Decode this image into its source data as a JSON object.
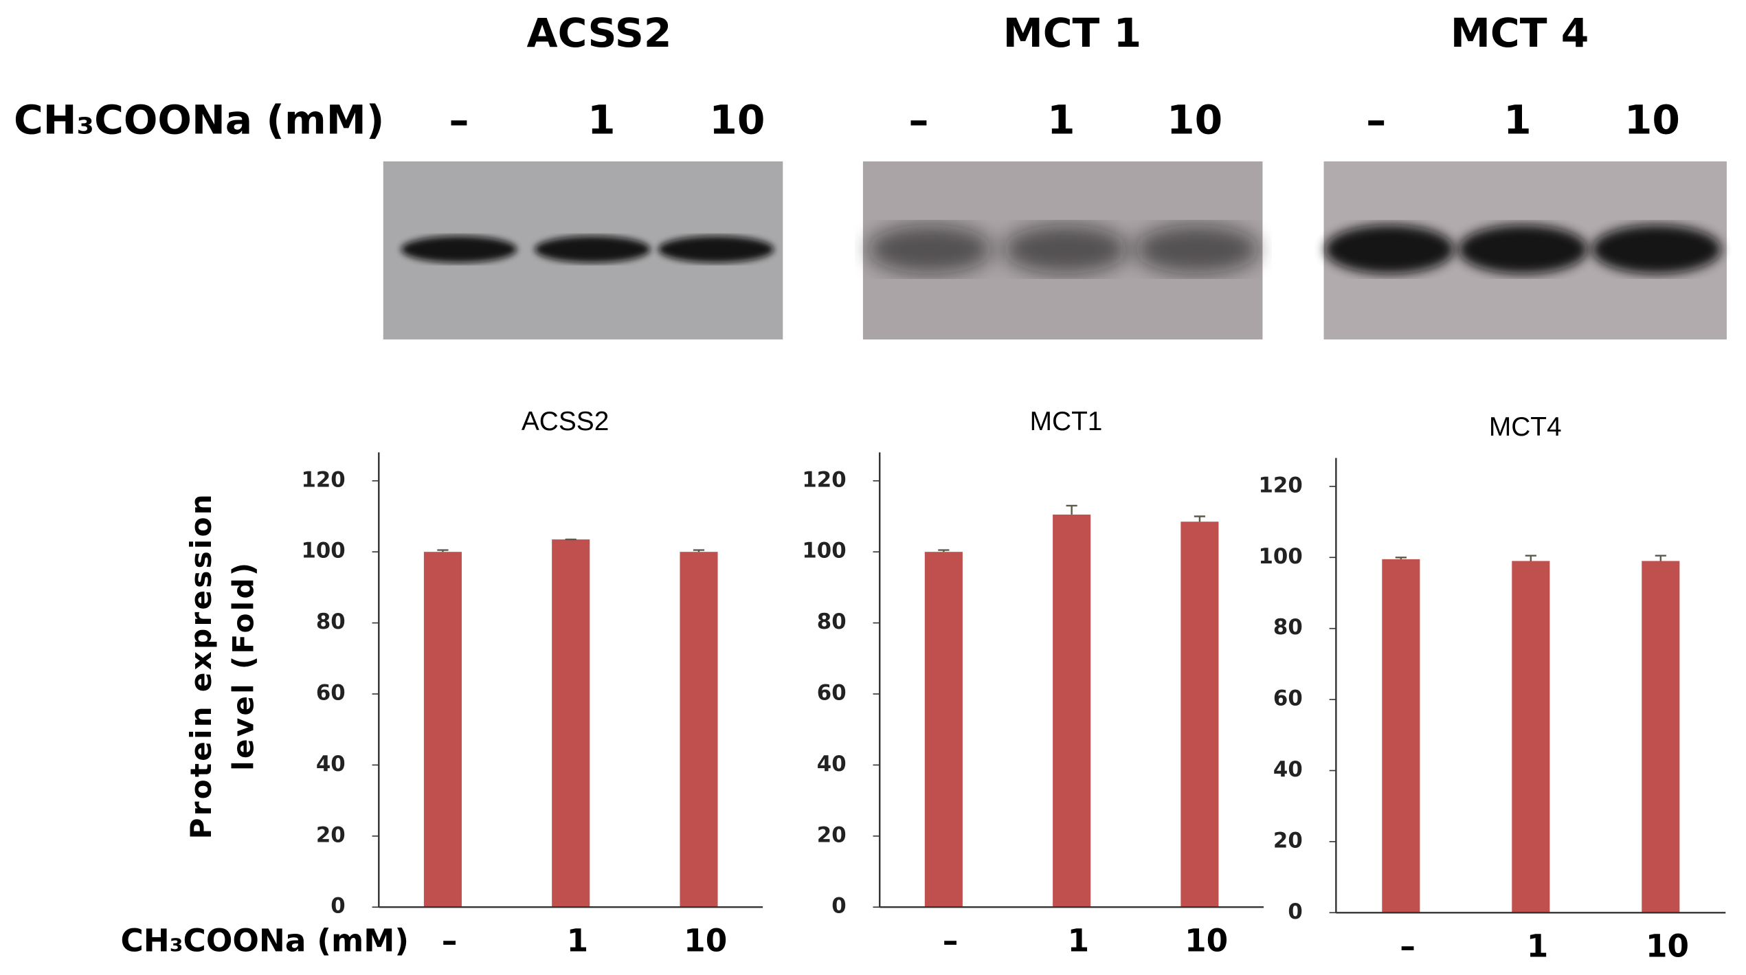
{
  "treatment_label": "CH₃COONa (mM)",
  "blots": [
    {
      "title": "ACSS2",
      "lanes": [
        "–",
        "1",
        "10"
      ]
    },
    {
      "title": "MCT 1",
      "lanes": [
        "–",
        "1",
        "10"
      ]
    },
    {
      "title": "MCT 4",
      "lanes": [
        "–",
        "1",
        "10"
      ]
    }
  ],
  "chart_data": [
    {
      "type": "bar",
      "title": "ACSS2",
      "ylabel": [
        "Protein expression",
        "level (Fold)"
      ],
      "xlabel": "CH₃COONa (mM)",
      "categories": [
        "–",
        "1",
        "10"
      ],
      "values": [
        100,
        103.5,
        100
      ],
      "errors": [
        0.5,
        0,
        0.5
      ],
      "color": "#c0504d",
      "ylim": [
        0,
        128
      ],
      "yticks": [
        0,
        20,
        40,
        60,
        80,
        100,
        120
      ]
    },
    {
      "type": "bar",
      "title": "MCT1",
      "categories": [
        "–",
        "1",
        "10"
      ],
      "values": [
        100,
        110.5,
        108.5
      ],
      "errors": [
        0.5,
        2.5,
        1.5
      ],
      "color": "#c0504d",
      "ylim": [
        0,
        128
      ],
      "yticks": [
        0,
        20,
        40,
        60,
        80,
        100,
        120
      ]
    },
    {
      "type": "bar",
      "title": "MCT4",
      "categories": [
        "–",
        "1",
        "10"
      ],
      "values": [
        99.5,
        99,
        99
      ],
      "errors": [
        0.5,
        1.5,
        1.5
      ],
      "color": "#c0504d",
      "ylim": [
        0,
        128
      ],
      "yticks": [
        0,
        20,
        40,
        60,
        80,
        100,
        120
      ]
    }
  ]
}
